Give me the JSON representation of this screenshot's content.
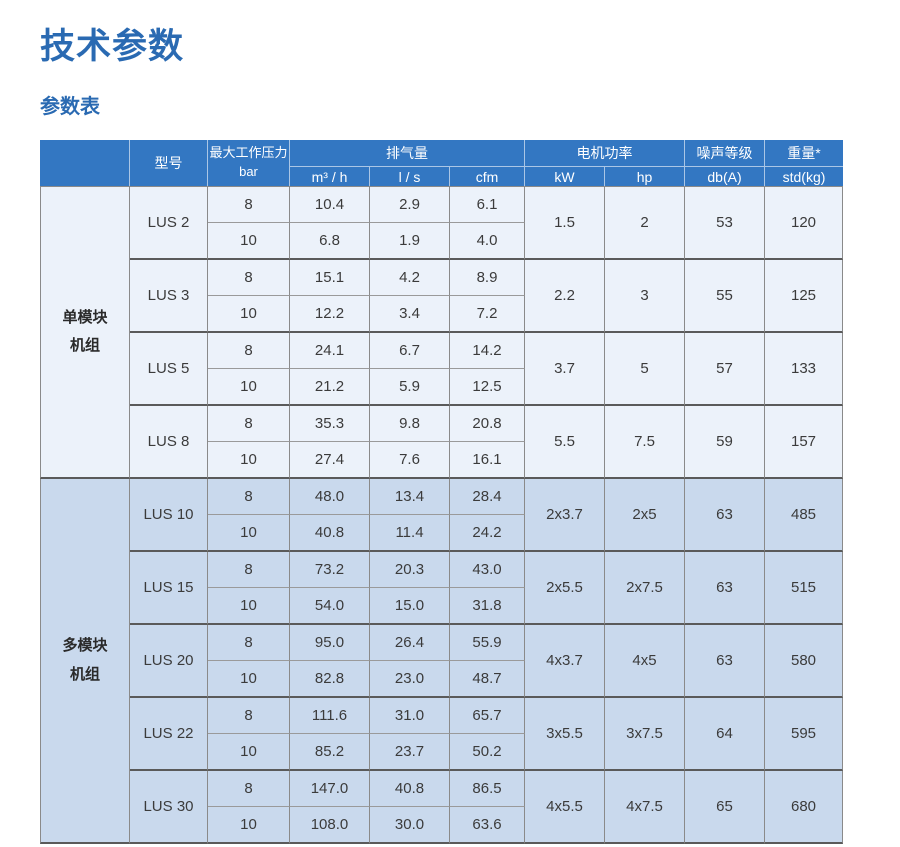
{
  "page": {
    "title": "技术参数",
    "subtitle": "参数表"
  },
  "colors": {
    "accent": "#2a6ab2",
    "header_bg": "#3377c2",
    "group1_row_bg": "#ecf2fa",
    "group2_row_bg": "#c9d9ed"
  },
  "table": {
    "type": "table",
    "header": {
      "model": "型号",
      "pressure_label": "最大工作压力",
      "pressure_unit": "bar",
      "capacity_label": "排气量",
      "capacity_units": [
        "m³ / h",
        "l / s",
        "cfm"
      ],
      "power_label": "电机功率",
      "power_units": [
        "kW",
        "hp"
      ],
      "noise_label": "噪声等级",
      "noise_unit": "db(A)",
      "weight_label": "重量*",
      "weight_unit": "std(kg)"
    },
    "groups": [
      {
        "name_lines": [
          "单模块",
          "机组"
        ],
        "models": [
          {
            "model": "LUS 2",
            "rows": [
              {
                "bar": "8",
                "m3h": "10.4",
                "ls": "2.9",
                "cfm": "6.1"
              },
              {
                "bar": "10",
                "m3h": "6.8",
                "ls": "1.9",
                "cfm": "4.0"
              }
            ],
            "kw": "1.5",
            "hp": "2",
            "db": "53",
            "weight": "120"
          },
          {
            "model": "LUS 3",
            "rows": [
              {
                "bar": "8",
                "m3h": "15.1",
                "ls": "4.2",
                "cfm": "8.9"
              },
              {
                "bar": "10",
                "m3h": "12.2",
                "ls": "3.4",
                "cfm": "7.2"
              }
            ],
            "kw": "2.2",
            "hp": "3",
            "db": "55",
            "weight": "125"
          },
          {
            "model": "LUS 5",
            "rows": [
              {
                "bar": "8",
                "m3h": "24.1",
                "ls": "6.7",
                "cfm": "14.2"
              },
              {
                "bar": "10",
                "m3h": "21.2",
                "ls": "5.9",
                "cfm": "12.5"
              }
            ],
            "kw": "3.7",
            "hp": "5",
            "db": "57",
            "weight": "133"
          },
          {
            "model": "LUS 8",
            "rows": [
              {
                "bar": "8",
                "m3h": "35.3",
                "ls": "9.8",
                "cfm": "20.8"
              },
              {
                "bar": "10",
                "m3h": "27.4",
                "ls": "7.6",
                "cfm": "16.1"
              }
            ],
            "kw": "5.5",
            "hp": "7.5",
            "db": "59",
            "weight": "157"
          }
        ]
      },
      {
        "name_lines": [
          "多模块",
          "机组"
        ],
        "models": [
          {
            "model": "LUS 10",
            "rows": [
              {
                "bar": "8",
                "m3h": "48.0",
                "ls": "13.4",
                "cfm": "28.4"
              },
              {
                "bar": "10",
                "m3h": "40.8",
                "ls": "11.4",
                "cfm": "24.2"
              }
            ],
            "kw": "2x3.7",
            "hp": "2x5",
            "db": "63",
            "weight": "485"
          },
          {
            "model": "LUS 15",
            "rows": [
              {
                "bar": "8",
                "m3h": "73.2",
                "ls": "20.3",
                "cfm": "43.0"
              },
              {
                "bar": "10",
                "m3h": "54.0",
                "ls": "15.0",
                "cfm": "31.8"
              }
            ],
            "kw": "2x5.5",
            "hp": "2x7.5",
            "db": "63",
            "weight": "515"
          },
          {
            "model": "LUS 20",
            "rows": [
              {
                "bar": "8",
                "m3h": "95.0",
                "ls": "26.4",
                "cfm": "55.9"
              },
              {
                "bar": "10",
                "m3h": "82.8",
                "ls": "23.0",
                "cfm": "48.7"
              }
            ],
            "kw": "4x3.7",
            "hp": "4x5",
            "db": "63",
            "weight": "580"
          },
          {
            "model": "LUS 22",
            "rows": [
              {
                "bar": "8",
                "m3h": "111.6",
                "ls": "31.0",
                "cfm": "65.7"
              },
              {
                "bar": "10",
                "m3h": "85.2",
                "ls": "23.7",
                "cfm": "50.2"
              }
            ],
            "kw": "3x5.5",
            "hp": "3x7.5",
            "db": "64",
            "weight": "595"
          },
          {
            "model": "LUS 30",
            "rows": [
              {
                "bar": "8",
                "m3h": "147.0",
                "ls": "40.8",
                "cfm": "86.5"
              },
              {
                "bar": "10",
                "m3h": "108.0",
                "ls": "30.0",
                "cfm": "63.6"
              }
            ],
            "kw": "4x5.5",
            "hp": "4x7.5",
            "db": "65",
            "weight": "680"
          }
        ]
      }
    ]
  }
}
